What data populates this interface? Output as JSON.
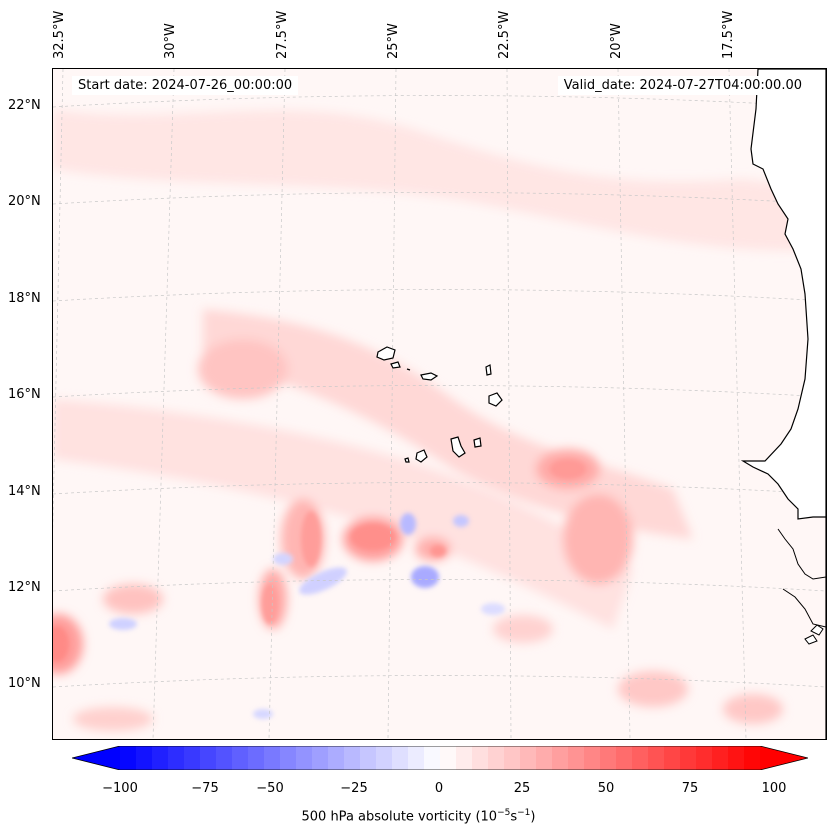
{
  "header": {
    "start_date": "Start date: 2024-07-26_00:00:00",
    "valid_date": "Valid_date: 2024-07-27T04:00:00.00"
  },
  "lon_labels": [
    "32.5°W",
    "30°W",
    "27.5°W",
    "25°W",
    "22.5°W",
    "20°W",
    "17.5°W"
  ],
  "lat_labels": [
    "22°N",
    "20°N",
    "18°N",
    "16°N",
    "14°N",
    "12°N",
    "10°N"
  ],
  "colorbar": {
    "ticks": [
      "−100",
      "−75",
      "−50",
      "−25",
      "0",
      "25",
      "50",
      "75",
      "100"
    ],
    "label_prefix": "500 hPa absolute vorticity (10",
    "label_exp1": "−5",
    "label_mid": "s",
    "label_exp2": "−1",
    "label_suffix": ")",
    "min_color": "#0000ff",
    "mid_color": "#ffffff",
    "max_color": "#ff0000"
  },
  "map": {
    "background_color": "#fff7f6",
    "land_color": "#ffffff",
    "coast_color": "#000000",
    "grid_color": "#c8c8c8"
  }
}
